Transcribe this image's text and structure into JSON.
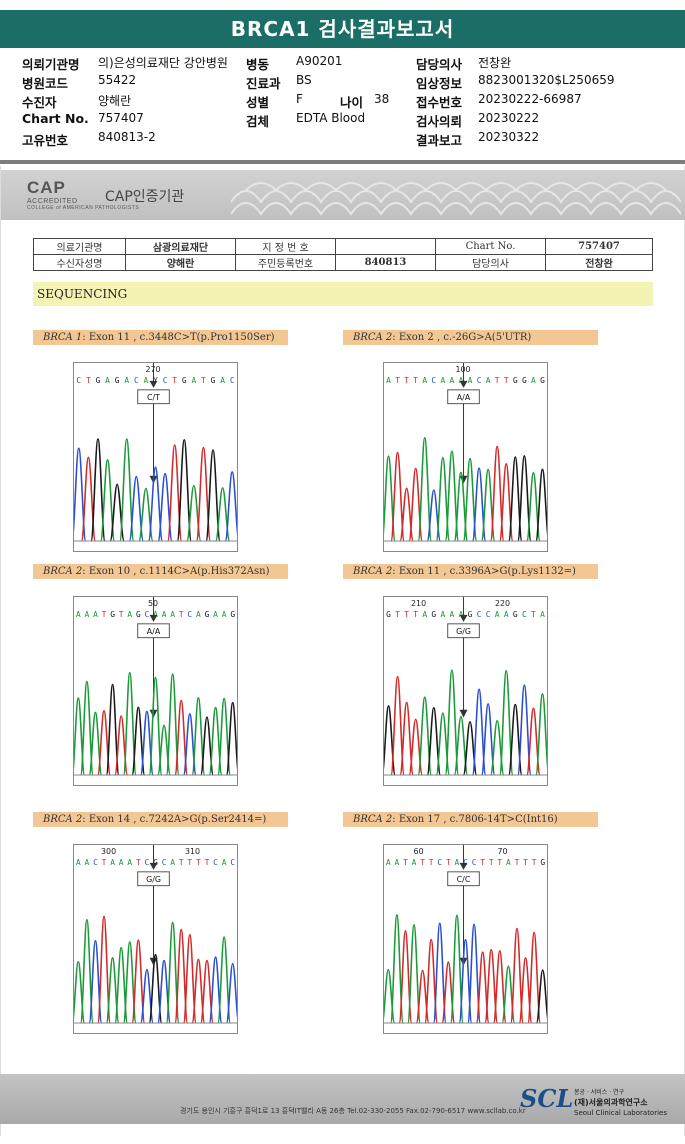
{
  "report": {
    "title": "BRCA1 검사결과보고서"
  },
  "info": {
    "c1": [
      {
        "label": "의뢰기관명",
        "value": "의)은성의료재단 강안병원"
      },
      {
        "label": "병원코드",
        "value": "55422"
      },
      {
        "label": "수진자",
        "value": "양해란"
      },
      {
        "label": "Chart No.",
        "value": "757407"
      },
      {
        "label": "고유번호",
        "value": "840813-2"
      }
    ],
    "c2": [
      {
        "label": "병동",
        "value": "A90201"
      },
      {
        "label": "진료과",
        "value": "BS"
      },
      {
        "label": "성별",
        "value": "F"
      },
      {
        "label": "검체",
        "value": "EDTA Blood"
      }
    ],
    "age": {
      "label": "나이",
      "value": "38"
    },
    "c3": [
      {
        "label": "담당의사",
        "value": "전창완"
      },
      {
        "label": "임상정보",
        "value": "8823001320$L250659"
      },
      {
        "label": "접수번호",
        "value": "20230222-66987"
      },
      {
        "label": "검사의뢰",
        "value": "20230222"
      },
      {
        "label": "결과보고",
        "value": "20230322"
      }
    ]
  },
  "cap": {
    "logo": "CAP",
    "accredited": "ACCREDITED",
    "college": "COLLEGE of AMERICAN PATHOLOGISTS",
    "text": "CAP인증기관"
  },
  "patient_table": {
    "r1": [
      "의료기관명",
      "삼광의료재단",
      "지 정 번 호",
      "",
      "Chart No.",
      "757407"
    ],
    "r2": [
      "수신자성명",
      "양해란",
      "주민등록번호",
      "840813",
      "담당의사",
      "전창완"
    ]
  },
  "section": "SEQUENCING",
  "panels": [
    {
      "gene": "BRCA 1",
      "detail": ": Exon 11 , c.3448C>T(p.Pro1150Ser)",
      "seq": "CTGAGACAYCTGATGAC",
      "pos": [
        "270"
      ],
      "call": "C/T"
    },
    {
      "gene": "BRCA 2",
      "detail": ": Exon 2 , c.-26G>A(5'UTR)",
      "seq": "ATTTACAAAACATTGGAG",
      "pos": [
        "100"
      ],
      "call": "A/A"
    },
    {
      "gene": "BRCA 2",
      "detail": ": Exon 10 , c.1114C>A(p.His372Asn)",
      "seq": "AAATGTAGCAAATCAGAAG",
      "pos": [
        "50"
      ],
      "call": "A/A"
    },
    {
      "gene": "BRCA 2",
      "detail": ": Exon 11 , c.3396A>G(p.Lys1132=)",
      "seq": "GTTTAGAAAGCCAAGCTA",
      "pos": [
        "210",
        "220"
      ],
      "call": "G/G"
    },
    {
      "gene": "BRCA 2",
      "detail": ": Exon 14 , c.7242A>G(p.Ser2414=)",
      "seq": "AACTAAATCGCATTTTCAC",
      "pos": [
        "300",
        "310"
      ],
      "call": "G/G"
    },
    {
      "gene": "BRCA 2",
      "detail": ": Exon 17 , c.7806-14T>C(Int16)",
      "seq": "AATATTCTACCTTTATTTG",
      "pos": [
        "60",
        "70"
      ],
      "call": "C/C"
    }
  ],
  "footer": {
    "address": "경기도 용인시 기흥구 흥덕1로 13 흥덕IT밸리 A동 26층  Tel.02-330-2055  Fax.02-790-6517  www.scllab.co.kr",
    "brand": "SCL",
    "name_top": "봉공 · 서비스 · 연구",
    "name": "(재)서울의과학연구소",
    "name_en": "Seoul Clinical Laboratories"
  },
  "colors": {
    "A": "#1c9a3a",
    "C": "#2a4fd0",
    "G": "#1a1a1a",
    "T": "#d42a2a",
    "brand": "#1b6e66"
  }
}
